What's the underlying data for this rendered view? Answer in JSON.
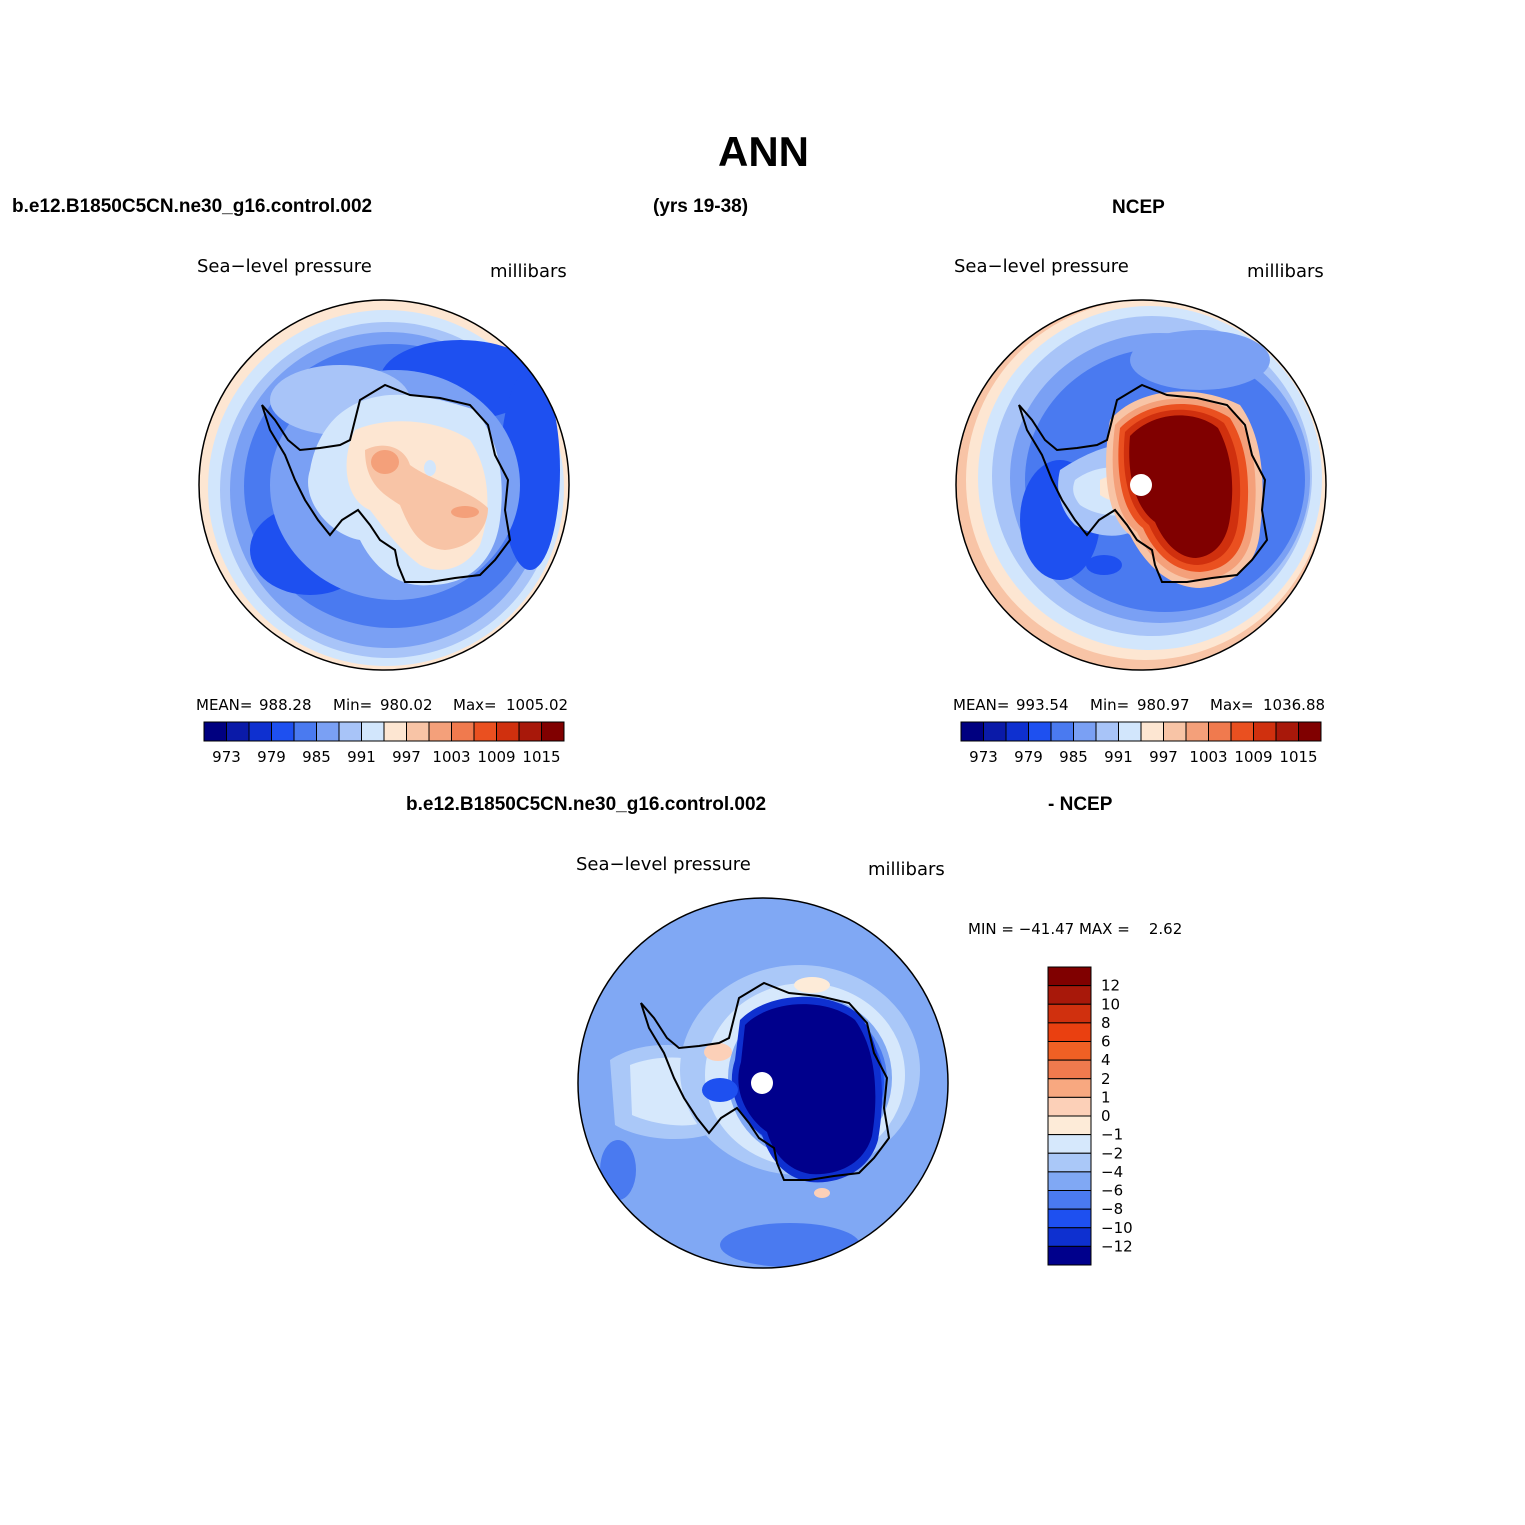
{
  "main_title": "ANN",
  "top_left_case": "b.e12.B1850C5CN.ne30_g16.control.002",
  "top_years": "(yrs 19-38)",
  "top_right_case": "NCEP",
  "bottom_case": "b.e12.B1850C5CN.ne30_g16.control.002",
  "bottom_minus": "- NCEP",
  "panels": [
    {
      "variable": "Sea−level pressure",
      "units": "millibars",
      "mean_label": "MEAN=",
      "mean": "988.28",
      "min_label": "Min=",
      "min": "980.02",
      "max_label": "Max=",
      "max": "1005.02"
    },
    {
      "variable": "Sea−level pressure",
      "units": "millibars",
      "mean_label": "MEAN=",
      "mean": "993.54",
      "min_label": "Min=",
      "min": "980.97",
      "max_label": "Max=",
      "max": "1036.88"
    },
    {
      "variable": "Sea−level pressure",
      "units": "millibars",
      "minmax": "MIN = −41.47 MAX =    2.62"
    }
  ],
  "chart_data": [
    {
      "type": "heatmap",
      "title": "b.e12.B1850C5CN.ne30_g16.control.002 (yrs 19-38)",
      "projection": "south polar stereographic",
      "variable": "Sea-level pressure",
      "units": "millibars",
      "mean": 988.28,
      "min": 980.02,
      "max": 1005.02,
      "contour_levels": [
        973,
        976,
        979,
        982,
        985,
        988,
        991,
        994,
        997,
        1000,
        1003,
        1006,
        1009,
        1012,
        1015
      ],
      "colorbar_labels": [
        "973",
        "979",
        "985",
        "991",
        "997",
        "1003",
        "1009",
        "1015"
      ]
    },
    {
      "type": "heatmap",
      "title": "NCEP",
      "projection": "south polar stereographic",
      "variable": "Sea-level pressure",
      "units": "millibars",
      "mean": 993.54,
      "min": 980.97,
      "max": 1036.88,
      "contour_levels": [
        973,
        976,
        979,
        982,
        985,
        988,
        991,
        994,
        997,
        1000,
        1003,
        1006,
        1009,
        1012,
        1015
      ],
      "colorbar_labels": [
        "973",
        "979",
        "985",
        "991",
        "997",
        "1003",
        "1009",
        "1015"
      ]
    },
    {
      "type": "heatmap",
      "title": "b.e12.B1850C5CN.ne30_g16.control.002 - NCEP",
      "projection": "south polar stereographic",
      "variable": "Sea-level pressure",
      "units": "millibars",
      "min": -41.47,
      "max": 2.62,
      "contour_levels": [
        -12,
        -10,
        -8,
        -6,
        -4,
        -2,
        -1,
        0,
        1,
        2,
        4,
        6,
        8,
        10,
        12
      ],
      "colorbar_labels": [
        "12",
        "10",
        "8",
        "6",
        "4",
        "2",
        "1",
        "0",
        "−1",
        "−2",
        "−4",
        "−6",
        "−8",
        "−10",
        "−12"
      ]
    }
  ],
  "colors": {
    "bar16": [
      "#000080",
      "#0a1aa8",
      "#0e30d0",
      "#1e50f0",
      "#4a7af0",
      "#7aa0f4",
      "#a8c4f8",
      "#d2e6fc",
      "#fde6d2",
      "#f8c4a6",
      "#f4a07a",
      "#f07a4e",
      "#ea5020",
      "#d0300e",
      "#a8180a",
      "#800000"
    ],
    "diff16": [
      "#800000",
      "#a8180a",
      "#d0300e",
      "#ea4010",
      "#f06024",
      "#f07a4e",
      "#f8a880",
      "#fcd0b8",
      "#fdebd8",
      "#d6e8fc",
      "#aac8f8",
      "#80a8f4",
      "#4a7af0",
      "#1e50f0",
      "#0e30d0",
      "#00008c"
    ]
  }
}
